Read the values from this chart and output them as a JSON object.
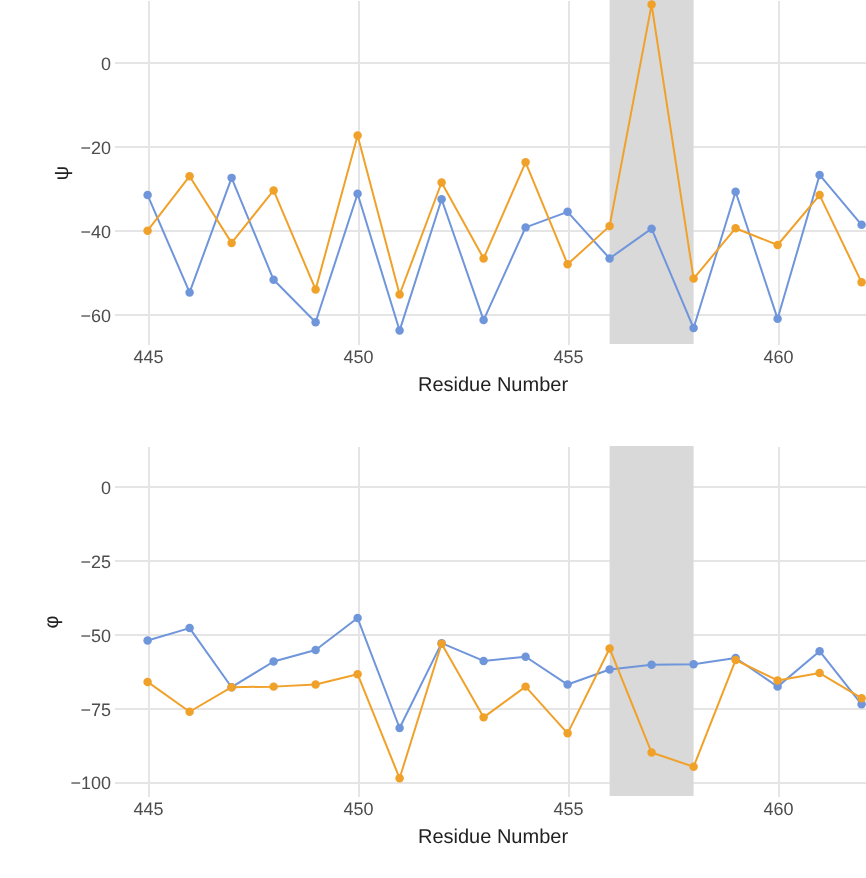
{
  "chart_data": [
    {
      "type": "line",
      "xlabel": "Residue Number",
      "ylabel": "ψ",
      "x": [
        445,
        446,
        447,
        448,
        449,
        450,
        451,
        452,
        453,
        454,
        455,
        456,
        457,
        458,
        459,
        460,
        461,
        462
      ],
      "series": [
        {
          "color": "#6f95db",
          "values": [
            -31.5,
            -54.7,
            -27.4,
            -51.7,
            -61.8,
            -31.2,
            -63.8,
            -32.5,
            -61.3,
            -39.2,
            -35.5,
            -46.6,
            -39.5,
            -63.2,
            -30.7,
            -61,
            -26.7,
            -38.6
          ]
        },
        {
          "color": "#f0a12a",
          "values": [
            -40,
            -27,
            -42.9,
            -30.4,
            -54,
            -17.3,
            -55.2,
            -28.5,
            -46.6,
            -23.7,
            -48,
            -38.9,
            13.9,
            -51.4,
            -39.4,
            -43.4,
            -31.5,
            -52.3
          ]
        }
      ],
      "xlim": [
        444.2,
        462.2
      ],
      "xticks": [
        445,
        450,
        455,
        460
      ],
      "ylim": [
        -67,
        15
      ],
      "yticks": [
        -60,
        -40,
        -20,
        0
      ],
      "bands": [
        {
          "axis": "x",
          "from": 456,
          "to": 458,
          "color": "#d9d9d9"
        }
      ],
      "grid": true,
      "legend": false,
      "marker": "circle",
      "line_style": "solid"
    },
    {
      "type": "line",
      "xlabel": "Residue Number",
      "ylabel": "φ",
      "x": [
        445,
        446,
        447,
        448,
        449,
        450,
        451,
        452,
        453,
        454,
        455,
        456,
        457,
        458,
        459,
        460,
        461,
        462
      ],
      "series": [
        {
          "color": "#6f95db",
          "values": [
            -52,
            -47.8,
            -67.8,
            -59.1,
            -55.2,
            -44.4,
            -81.6,
            -52.9,
            -58.9,
            -57.5,
            -66.9,
            -61.8,
            -60.2,
            -60,
            -57.9,
            -67.6,
            -55.6,
            -73.6
          ]
        },
        {
          "color": "#f0a12a",
          "values": [
            -66,
            -76.1,
            -67.8,
            -67.6,
            -66.9,
            -63.4,
            -98.6,
            -53.1,
            -78,
            -67.6,
            -83.4,
            -54.7,
            -89.9,
            -94.7,
            -58.6,
            -65.5,
            -63,
            -71.5
          ]
        }
      ],
      "xlim": [
        444.2,
        462.2
      ],
      "xticks": [
        445,
        450,
        455,
        460
      ],
      "ylim": [
        -104.6,
        13.8
      ],
      "yticks": [
        -100,
        -75,
        -50,
        -25,
        0
      ],
      "bands": [
        {
          "axis": "x",
          "from": 456,
          "to": 458,
          "color": "#d9d9d9"
        }
      ],
      "grid": true,
      "legend": false,
      "marker": "circle",
      "line_style": "solid"
    }
  ]
}
